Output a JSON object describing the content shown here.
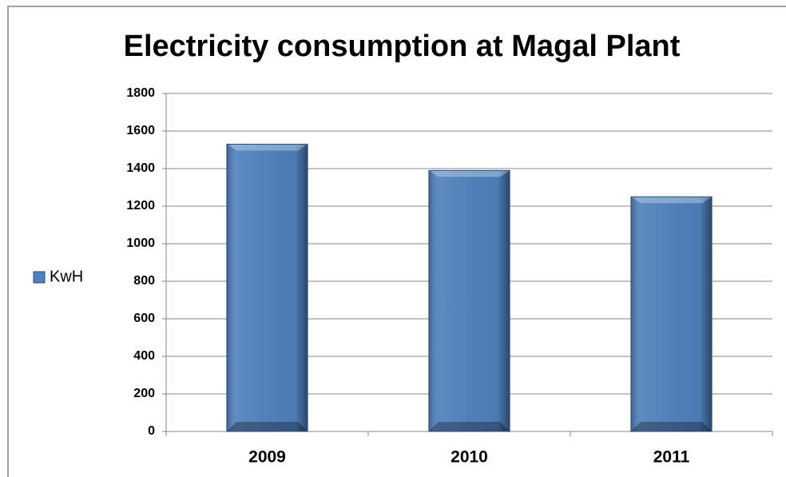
{
  "chart_data": {
    "type": "bar",
    "title": "Electricity consumption at Magal Plant",
    "categories": [
      "2009",
      "2010",
      "2011"
    ],
    "series": [
      {
        "name": "KwH",
        "color": "#4f81bd",
        "values": [
          1530,
          1390,
          1250
        ]
      }
    ],
    "ylim": [
      0,
      1800
    ],
    "yticks": [
      0,
      200,
      400,
      600,
      800,
      1000,
      1200,
      1400,
      1600,
      1800
    ],
    "grid": true,
    "legend": "left"
  }
}
